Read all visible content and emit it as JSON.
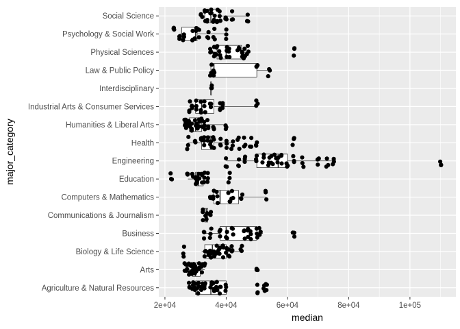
{
  "chart_data": {
    "type": "boxplot",
    "orientation": "horizontal",
    "xlabel": "median",
    "ylabel": "major_category",
    "xlim": [
      18000,
      115000
    ],
    "x_ticks": [
      20000,
      40000,
      60000,
      80000,
      100000
    ],
    "x_tick_labels": [
      "2e+04",
      "4e+04",
      "6e+04",
      "8e+04",
      "1e+05"
    ],
    "grid": true,
    "legend": "none",
    "colors": {
      "panel": "#ebebeb",
      "grid": "#ffffff",
      "points": "#000000",
      "box_fill": "#ffffff",
      "box_line": "#333333"
    },
    "categories": [
      "Agriculture & Natural Resources",
      "Arts",
      "Biology & Life Science",
      "Business",
      "Communications & Journalism",
      "Computers & Mathematics",
      "Education",
      "Engineering",
      "Health",
      "Humanities & Liberal Arts",
      "Industrial Arts & Consumer Services",
      "Interdisciplinary",
      "Law & Public Policy",
      "Physical Sciences",
      "Psychology & Social Work",
      "Social Science"
    ],
    "boxes": [
      {
        "category": "Agriculture & Natural Resources",
        "min": 28000,
        "q1": 30000,
        "median": 35000,
        "q3": 40000,
        "max": 40000
      },
      {
        "category": "Arts",
        "min": 26500,
        "q1": 29000,
        "median": 30000,
        "q3": 31500,
        "max": 33000
      },
      {
        "category": "Biology & Life Science",
        "min": 32000,
        "q1": 33000,
        "median": 35500,
        "q3": 40000,
        "max": 45000
      },
      {
        "category": "Business",
        "min": 33000,
        "q1": 38000,
        "median": 40000,
        "q3": 50000,
        "max": 52000
      },
      {
        "category": "Communications & Journalism",
        "min": 32500,
        "q1": 33000,
        "median": 33500,
        "q3": 34000,
        "max": 35000
      },
      {
        "category": "Computers & Mathematics",
        "min": 35000,
        "q1": 36000,
        "median": 38000,
        "q3": 44000,
        "max": 53000
      },
      {
        "category": "Education",
        "min": 27500,
        "q1": 30000,
        "median": 31000,
        "q3": 32500,
        "max": 34000
      },
      {
        "category": "Engineering",
        "min": 40000,
        "q1": 50000,
        "median": 57000,
        "q3": 60000,
        "max": 75000
      },
      {
        "category": "Health",
        "min": 27500,
        "q1": 32000,
        "median": 35000,
        "q3": 36000,
        "max": 42000
      },
      {
        "category": "Humanities & Liberal Arts",
        "min": 26500,
        "q1": 28000,
        "median": 30000,
        "q3": 32000,
        "max": 40000
      },
      {
        "category": "Industrial Arts & Consumer Services",
        "min": 28000,
        "q1": 30000,
        "median": 32000,
        "q3": 36000,
        "max": 50000
      },
      {
        "category": "Interdisciplinary",
        "min": 35000,
        "q1": 35000,
        "median": 35000,
        "q3": 35000,
        "max": 35000
      },
      {
        "category": "Law & Public Policy",
        "min": 35000,
        "q1": 35000,
        "median": 36000,
        "q3": 50000,
        "max": 54000
      },
      {
        "category": "Physical Sciences",
        "min": 35000,
        "q1": 37000,
        "median": 40000,
        "q3": 45000,
        "max": 47000
      },
      {
        "category": "Psychology & Social Work",
        "min": 25000,
        "q1": 25500,
        "median": 30000,
        "q3": 30500,
        "max": 40000
      },
      {
        "category": "Social Science",
        "min": 32000,
        "q1": 33000,
        "median": 35000,
        "q3": 38000,
        "max": 47000
      }
    ],
    "points": [
      {
        "category": "Agriculture & Natural Resources",
        "values": [
          28000,
          29000,
          30000,
          30500,
          31000,
          32000,
          33000,
          35000,
          36000,
          37000,
          38000,
          40000,
          50000,
          52500,
          53000
        ]
      },
      {
        "category": "Arts",
        "values": [
          26500,
          27000,
          28000,
          28500,
          29000,
          29500,
          30000,
          30500,
          31000,
          32000,
          33000,
          50000
        ]
      },
      {
        "category": "Biology & Life Science",
        "values": [
          26000,
          33000,
          34000,
          35000,
          36000,
          37000,
          38000,
          39000,
          40000,
          41000,
          42000,
          45000
        ]
      },
      {
        "category": "Business",
        "values": [
          33000,
          35000,
          38000,
          40000,
          42000,
          46000,
          47000,
          48000,
          50000,
          51000,
          62000
        ]
      },
      {
        "category": "Communications & Journalism",
        "values": [
          32500,
          33500,
          35000
        ]
      },
      {
        "category": "Computers & Mathematics",
        "values": [
          35000,
          36000,
          37000,
          41000,
          42000,
          45000,
          53000
        ]
      },
      {
        "category": "Education",
        "values": [
          22000,
          27500,
          29000,
          30000,
          30500,
          31000,
          32000,
          33000,
          34000,
          41000
        ]
      },
      {
        "category": "Engineering",
        "values": [
          40000,
          44000,
          46000,
          50000,
          52000,
          54000,
          55000,
          56000,
          57000,
          58000,
          60000,
          62000,
          65000,
          70000,
          73000,
          75000,
          110000
        ]
      },
      {
        "category": "Health",
        "values": [
          27500,
          30000,
          32000,
          33000,
          34000,
          35000,
          36000,
          38000,
          40000,
          42000,
          44000,
          46000,
          48000,
          50000,
          62000
        ]
      },
      {
        "category": "Humanities & Liberal Arts",
        "values": [
          26500,
          27000,
          27500,
          28000,
          29000,
          30000,
          30500,
          31000,
          32000,
          33000,
          34000,
          36000,
          40000
        ]
      },
      {
        "category": "Industrial Arts & Consumer Services",
        "values": [
          28000,
          29000,
          30000,
          32000,
          33000,
          35000,
          38000,
          39000,
          50000
        ]
      },
      {
        "category": "Interdisciplinary",
        "values": [
          35000
        ]
      },
      {
        "category": "Law & Public Policy",
        "values": [
          35000,
          36000,
          50000,
          54000
        ]
      },
      {
        "category": "Physical Sciences",
        "values": [
          35000,
          36000,
          37000,
          38000,
          40000,
          41000,
          44000,
          45000,
          46000,
          47000,
          62000
        ]
      },
      {
        "category": "Psychology & Social Work",
        "values": [
          23000,
          25000,
          26000,
          29000,
          30000,
          31000,
          34000,
          36000,
          40000
        ]
      },
      {
        "category": "Social Science",
        "values": [
          32000,
          33000,
          34000,
          35000,
          36000,
          37000,
          38000,
          40000,
          42000,
          47000
        ]
      }
    ]
  }
}
